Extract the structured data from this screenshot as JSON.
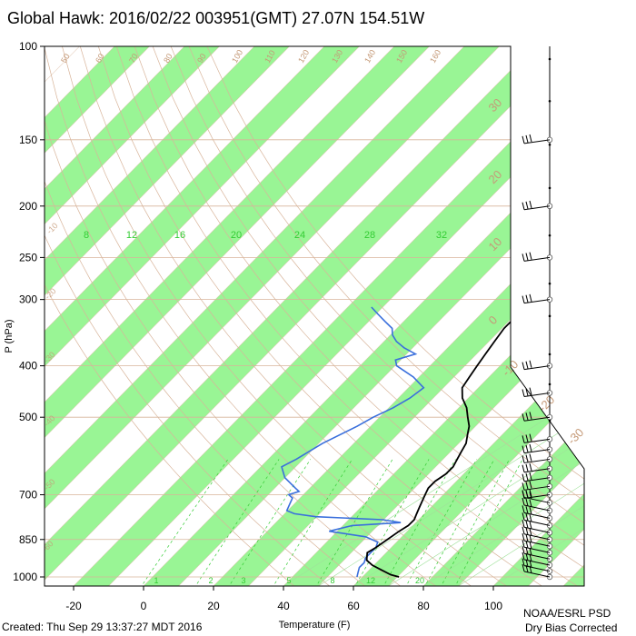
{
  "title": "Global Hawk: 2016/02/22 003951(GMT) 27.07N 154.51W",
  "footer": {
    "created": "Created: Thu Sep 29 13:37:27 MDT 2016",
    "credit_line1": "NOAA/ESRL PSD",
    "credit_line2": "Dry Bias Corrected"
  },
  "chart_data": {
    "type": "line",
    "subtype": "skew-T log-P",
    "xlabel": "Temperature (F)",
    "ylabel": "P (hPa)",
    "xlim": [
      -30,
      110
    ],
    "ylim_hpa": [
      1000,
      100
    ],
    "y_scale": "log",
    "x_ticks": [
      "-20",
      "0",
      "20",
      "40",
      "60",
      "80",
      "100"
    ],
    "x_tick_values": [
      -20,
      0,
      20,
      40,
      60,
      80,
      100
    ],
    "y_ticks": [
      "100",
      "150",
      "200",
      "250",
      "300",
      "400",
      "500",
      "700",
      "850",
      "1000"
    ],
    "y_tick_values": [
      100,
      150,
      200,
      250,
      300,
      400,
      500,
      700,
      850,
      1000
    ],
    "colors": {
      "temperature": "#000000",
      "dewpoint": "#3a6fdc",
      "dewpoint_tail": "#7a7ab8",
      "band": "#99f595",
      "isotherm": "#d8b49a",
      "isotherm_label": "#c59a78",
      "mixing_ratio": "#33cc33",
      "wind": "#000000"
    },
    "isotherm_labels": [
      "30",
      "20",
      "10",
      "0",
      "-10",
      "-20",
      "-30",
      "-40",
      "-50",
      "-60"
    ],
    "dry_adiabat_labels": [
      "50",
      "60",
      "70",
      "80",
      "90",
      "100",
      "110",
      "120",
      "130",
      "140",
      "150",
      "160"
    ],
    "mixing_ratio_labels": [
      "8",
      "12",
      "16",
      "20",
      "24",
      "28",
      "32"
    ],
    "mixing_ratio_bottom_labels": [
      "1",
      "2",
      "3",
      "5",
      "8",
      "12",
      "20"
    ],
    "series": [
      {
        "pressure": [
          1000,
          990,
          970,
          950,
          930,
          900,
          880,
          850,
          820,
          800,
          780,
          760,
          740,
          720,
          700,
          680,
          660,
          640,
          620,
          600,
          580,
          560,
          540,
          520,
          500,
          480,
          460,
          440,
          420,
          400,
          380,
          360,
          340,
          330,
          320,
          310,
          300,
          290,
          280,
          270,
          260,
          250,
          240,
          230,
          220,
          210,
          200,
          190,
          180,
          170,
          160,
          150,
          140,
          135
        ],
        "temperature": [
          73,
          70,
          66,
          62,
          59,
          57,
          58,
          59,
          60,
          61,
          61,
          60,
          59,
          58,
          57,
          56,
          56,
          57,
          57,
          56,
          55,
          54,
          52,
          50,
          47,
          44,
          40,
          37,
          36,
          35,
          34,
          33,
          32,
          32,
          33,
          34,
          35,
          37,
          39,
          41,
          42,
          43,
          42,
          40,
          38,
          39,
          40,
          41,
          42,
          42,
          41,
          41,
          41,
          41
        ]
      },
      {
        "pressure": [
          1000,
          980,
          960,
          940,
          920,
          900,
          880,
          860,
          840,
          820,
          800,
          790,
          780,
          770,
          760,
          750,
          730,
          710,
          700,
          690,
          680,
          650,
          620,
          600,
          560,
          520,
          500,
          480,
          460,
          440,
          420,
          400,
          390,
          380,
          370,
          360,
          350,
          340,
          330,
          320,
          310
        ],
        "dewpoint": [
          61,
          60,
          59,
          59,
          58,
          58,
          58,
          57,
          52,
          40,
          45,
          58,
          52,
          32,
          25,
          22,
          21,
          20,
          18,
          20,
          18,
          12,
          8,
          10,
          13,
          18,
          20,
          23,
          25,
          26,
          20,
          12,
          10,
          14,
          9,
          5,
          2,
          0,
          -4,
          -8,
          -12
        ]
      }
    ],
    "wind_barb_pressures": [
      1000,
      975,
      950,
      925,
      900,
      875,
      850,
      825,
      800,
      775,
      750,
      725,
      700,
      675,
      650,
      625,
      600,
      575,
      550,
      500,
      450,
      400,
      300,
      250,
      200,
      150
    ]
  }
}
